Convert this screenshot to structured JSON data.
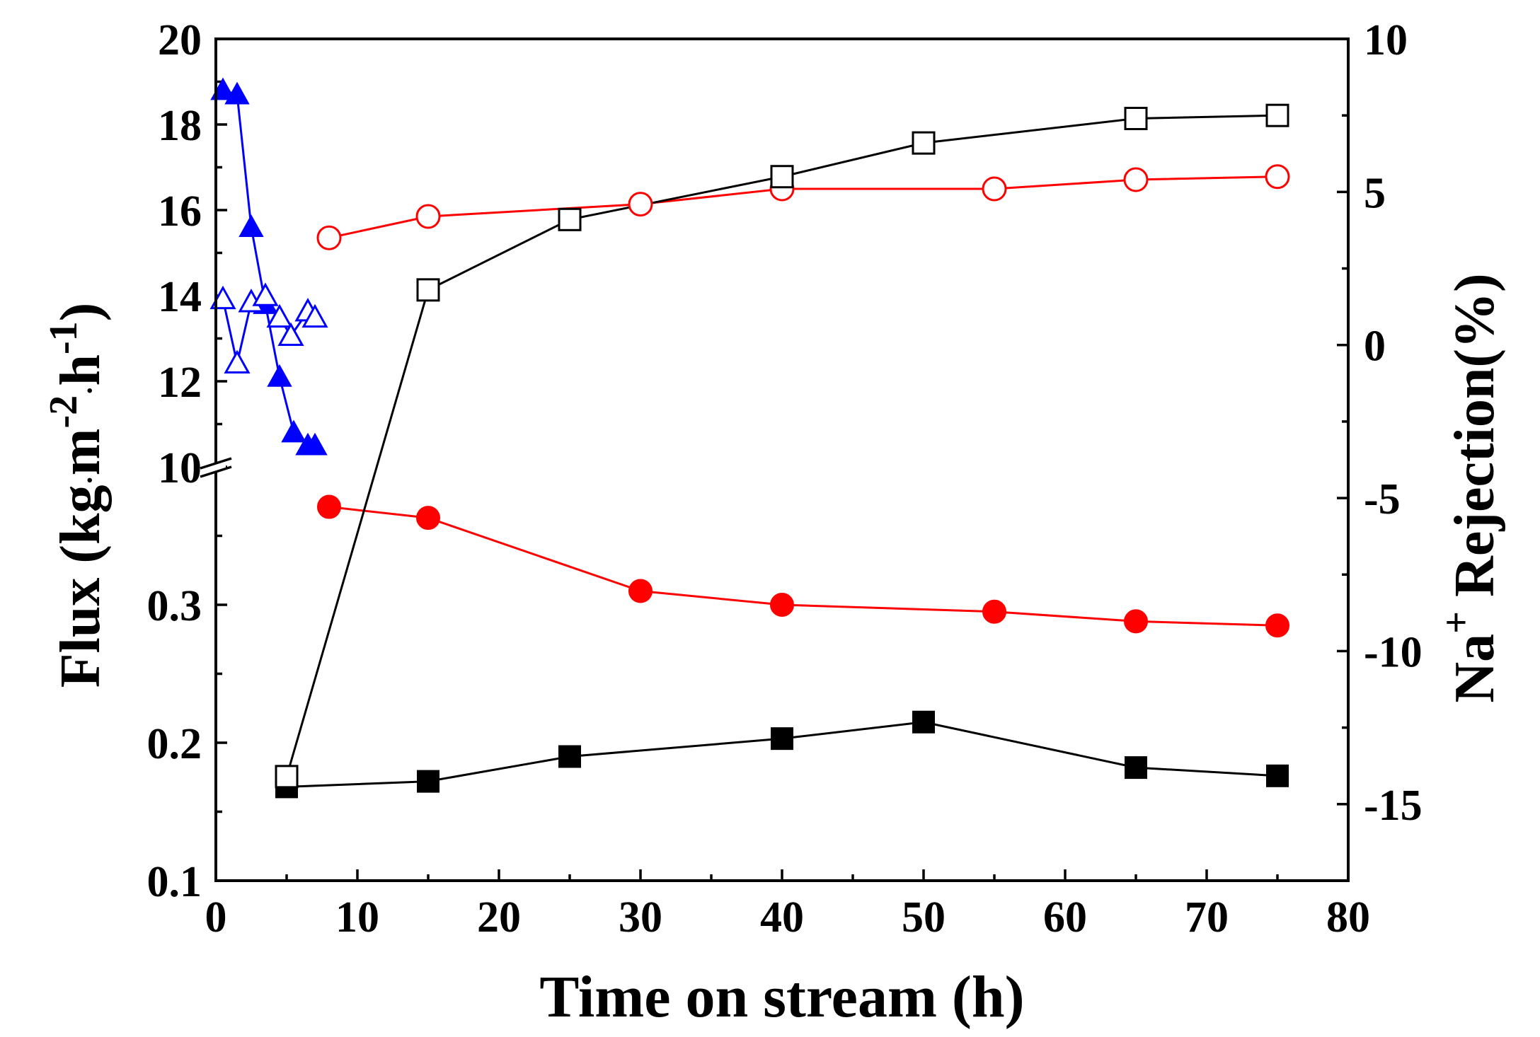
{
  "chart_data": {
    "type": "line",
    "x_axis": {
      "label": "Time on stream (h)",
      "range": [
        0,
        80
      ],
      "ticks": [
        "0",
        "10",
        "20",
        "30",
        "40",
        "50",
        "60",
        "70",
        "80"
      ]
    },
    "y_left": {
      "label_prefix": "Flux (kg",
      "label_parts": {
        "m": "m",
        "exp1": "-2",
        "h": "h",
        "exp2": "-1",
        "close": ")",
        "dot": "·"
      },
      "segments": [
        {
          "range": [
            0.1,
            0.4
          ],
          "ticks": [
            "0.1",
            "0.2",
            "0.3"
          ]
        },
        {
          "range": [
            10,
            20
          ],
          "ticks": [
            "10",
            "12",
            "14",
            "16",
            "18",
            "20"
          ]
        }
      ],
      "break": true
    },
    "y_right": {
      "label_prefix": "Na",
      "label_sup": "+",
      "label_suffix": " Rejection(%)",
      "range": [
        -17.5,
        10
      ],
      "ticks": [
        "-15",
        "-10",
        "-5",
        "0",
        "5",
        "10"
      ]
    },
    "series": [
      {
        "name": "flux-blue",
        "axis": "left",
        "color": "#0000ff",
        "marker": "triangle",
        "filled": true,
        "x": [
          0.5,
          1.5,
          2.5,
          3.5,
          4.5,
          5.5,
          6.5,
          7.0
        ],
        "y": [
          18.8,
          18.7,
          15.6,
          13.8,
          12.1,
          10.8,
          10.5,
          10.5
        ]
      },
      {
        "name": "rejection-blue",
        "axis": "right",
        "color": "#0000ff",
        "marker": "triangle",
        "filled": false,
        "x": [
          0.5,
          1.5,
          2.5,
          3.5,
          4.5,
          5.3,
          6.5,
          7.0
        ],
        "y": [
          1.5,
          -0.6,
          1.4,
          1.6,
          0.9,
          0.3,
          1.1,
          0.9
        ]
      },
      {
        "name": "flux-red",
        "axis": "left",
        "color": "#ff0000",
        "marker": "circle",
        "filled": true,
        "x": [
          8,
          15,
          30,
          40,
          55,
          65,
          75
        ],
        "y": [
          0.371,
          0.363,
          0.31,
          0.3,
          0.295,
          0.288,
          0.285
        ]
      },
      {
        "name": "rejection-red",
        "axis": "right",
        "color": "#ff0000",
        "marker": "circle",
        "filled": false,
        "x": [
          8,
          15,
          30,
          40,
          55,
          65,
          75
        ],
        "y": [
          3.5,
          4.2,
          4.6,
          5.1,
          5.1,
          5.4,
          5.5
        ]
      },
      {
        "name": "flux-black",
        "axis": "left",
        "color": "#000000",
        "marker": "square",
        "filled": true,
        "x": [
          5,
          15,
          25,
          40,
          50,
          65,
          75
        ],
        "y": [
          0.168,
          0.172,
          0.19,
          0.203,
          0.215,
          0.182,
          0.176
        ]
      },
      {
        "name": "rejection-black",
        "axis": "right",
        "color": "#000000",
        "marker": "square",
        "filled": false,
        "x": [
          5,
          15,
          25,
          40,
          50,
          65,
          75
        ],
        "y": [
          -14.1,
          1.8,
          4.1,
          5.5,
          6.6,
          7.4,
          7.5
        ]
      }
    ]
  }
}
